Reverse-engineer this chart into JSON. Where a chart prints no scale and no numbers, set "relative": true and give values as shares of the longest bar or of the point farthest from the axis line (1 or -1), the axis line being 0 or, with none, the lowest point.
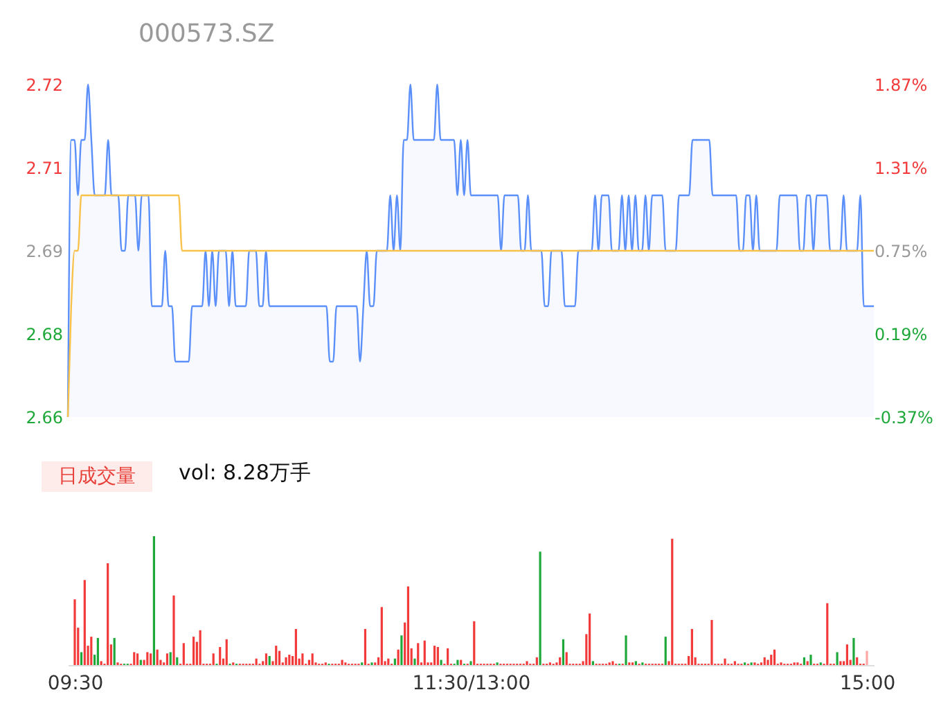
{
  "chart_data": [
    {
      "type": "line",
      "title": "000573.SZ",
      "categories": [
        null,
        null,
        null,
        null,
        null,
        null,
        null,
        null,
        null,
        null,
        null,
        null,
        null,
        null,
        null,
        null,
        null,
        null,
        null,
        null,
        null,
        null,
        null,
        null,
        null,
        null,
        null,
        null,
        null,
        null,
        null,
        null,
        null,
        null,
        null,
        null,
        null,
        null,
        null,
        null,
        null,
        null,
        null,
        null,
        null,
        null,
        null,
        null,
        null,
        null,
        null,
        null,
        null,
        null,
        null,
        null,
        null,
        null,
        null,
        null,
        null,
        null,
        null,
        null,
        null,
        null,
        null,
        null,
        null,
        null,
        null,
        null,
        null,
        null,
        null,
        null,
        null,
        null,
        null,
        null,
        null,
        null,
        null,
        null,
        null,
        null,
        null,
        null,
        null,
        null,
        null,
        null,
        null,
        null,
        null,
        null,
        null,
        null,
        null,
        null,
        null,
        null,
        null,
        null,
        null,
        null,
        null,
        null,
        null,
        null,
        null,
        null,
        null,
        null,
        null,
        null,
        null,
        null,
        null,
        null,
        null,
        null,
        null,
        null,
        null,
        null,
        null,
        null,
        null,
        null,
        null,
        null,
        null,
        null,
        null,
        null,
        null,
        null,
        null,
        null,
        null,
        null,
        null,
        null,
        null,
        null,
        null,
        null,
        null,
        null,
        null,
        null,
        null,
        null,
        null,
        null,
        null,
        null,
        null,
        null,
        null,
        null,
        null,
        null,
        null,
        null,
        null,
        null,
        null,
        null,
        null,
        null,
        null,
        null,
        null,
        null,
        null,
        null,
        null,
        null,
        null,
        null,
        null,
        null,
        null,
        null,
        null,
        null,
        null,
        null,
        null,
        null,
        null,
        null,
        null,
        null,
        null,
        null,
        null,
        null,
        null,
        null,
        null,
        null,
        null,
        null,
        null,
        null,
        null,
        null,
        null,
        null,
        null,
        null,
        null,
        null,
        null,
        null,
        null,
        null,
        null,
        null,
        null,
        null,
        null,
        null,
        null,
        null,
        null,
        null,
        null,
        null,
        null,
        null,
        null,
        null,
        null,
        null,
        null,
        null,
        null
      ],
      "ylim": [
        2.66,
        2.72
      ],
      "yticks": [
        2.66,
        {
          "value": 2.675,
          "label": "2.68"
        },
        2.69,
        {
          "value": 2.705,
          "label": "2.71"
        },
        2.72
      ],
      "y2lim": [
        -0.37,
        1.87
      ],
      "y2ticks": [
        {
          "value": -0.37,
          "label": "-0.37%"
        },
        {
          "value": 0.19,
          "label": "0.19%"
        },
        {
          "value": 0.75,
          "label": "0.75%"
        },
        {
          "value": 1.31,
          "label": "1.31%"
        },
        {
          "value": 1.87,
          "label": "1.87%"
        }
      ],
      "tick_labels": "y",
      "series": [
        {
          "type": "area",
          "color": "#5b8ff9",
          "values": [
            2.66,
            2.71,
            2.71,
            2.7,
            2.71,
            2.71,
            2.72,
            2.71,
            2.7,
            2.7,
            2.7,
            2.7,
            2.71,
            2.7,
            2.7,
            2.7,
            2.69,
            2.69,
            2.7,
            2.7,
            2.7,
            2.69,
            2.7,
            2.7,
            2.7,
            2.68,
            2.68,
            2.68,
            2.68,
            2.69,
            2.68,
            2.68,
            2.67,
            2.67,
            2.67,
            2.67,
            2.67,
            2.68,
            2.68,
            2.68,
            2.68,
            2.69,
            2.68,
            2.69,
            2.68,
            2.69,
            2.69,
            2.69,
            2.68,
            2.69,
            2.68,
            2.68,
            2.68,
            2.68,
            2.69,
            2.69,
            2.69,
            2.68,
            2.68,
            2.69,
            2.68,
            2.68,
            2.68,
            2.68,
            2.68,
            2.68,
            2.68,
            2.68,
            2.68,
            2.68,
            2.68,
            2.68,
            2.68,
            2.68,
            2.68,
            2.68,
            2.68,
            2.68,
            2.67,
            2.67,
            2.68,
            2.68,
            2.68,
            2.68,
            2.68,
            2.68,
            2.68,
            2.67,
            2.68,
            2.69,
            2.68,
            2.68,
            2.69,
            2.69,
            2.69,
            2.69,
            2.7,
            2.69,
            2.7,
            2.69,
            2.71,
            2.71,
            2.72,
            2.71,
            2.71,
            2.71,
            2.71,
            2.71,
            2.71,
            2.71,
            2.72,
            2.71,
            2.71,
            2.71,
            2.71,
            2.71,
            2.7,
            2.71,
            2.7,
            2.71,
            2.7,
            2.7,
            2.7,
            2.7,
            2.7,
            2.7,
            2.7,
            2.7,
            2.7,
            2.69,
            2.7,
            2.7,
            2.7,
            2.7,
            2.7,
            2.69,
            2.69,
            2.7,
            2.69,
            2.69,
            2.69,
            2.69,
            2.68,
            2.68,
            2.69,
            2.69,
            2.69,
            2.69,
            2.68,
            2.68,
            2.68,
            2.68,
            2.69,
            2.69,
            2.69,
            2.69,
            2.69,
            2.7,
            2.69,
            2.7,
            2.7,
            2.7,
            2.69,
            2.69,
            2.69,
            2.7,
            2.69,
            2.7,
            2.69,
            2.7,
            2.69,
            2.69,
            2.7,
            2.69,
            2.7,
            2.7,
            2.7,
            2.7,
            2.69,
            2.69,
            2.69,
            2.69,
            2.7,
            2.7,
            2.7,
            2.7,
            2.71,
            2.71,
            2.71,
            2.71,
            2.71,
            2.71,
            2.7,
            2.7,
            2.7,
            2.7,
            2.7,
            2.7,
            2.7,
            2.7,
            2.69,
            2.69,
            2.7,
            2.7,
            2.69,
            2.7,
            2.69,
            2.69,
            2.69,
            2.69,
            2.69,
            2.69,
            2.7,
            2.7,
            2.7,
            2.7,
            2.7,
            2.7,
            2.69,
            2.69,
            2.7,
            2.7,
            2.69,
            2.7,
            2.7,
            2.7,
            2.7,
            2.69,
            2.69,
            2.69,
            2.69,
            2.7,
            2.69,
            2.69,
            2.69,
            2.69,
            2.7,
            2.68,
            2.68,
            2.68,
            2.68
          ]
        },
        {
          "type": "line",
          "color": "#f8c24a",
          "values": [
            2.66,
            2.68,
            2.69,
            2.69,
            2.7,
            2.7,
            2.7,
            2.7,
            2.7,
            2.7,
            2.7,
            2.7,
            2.7,
            2.7,
            2.7,
            2.7,
            2.7,
            2.7,
            2.7,
            2.7,
            2.7,
            2.7,
            2.7,
            2.7,
            2.7,
            2.7,
            2.7,
            2.7,
            2.7,
            2.7,
            2.7,
            2.7,
            2.7,
            2.7,
            2.69,
            2.69,
            2.69,
            2.69,
            2.69,
            2.69,
            2.69,
            2.69,
            2.69,
            2.69,
            2.69,
            2.69,
            2.69,
            2.69,
            2.69,
            2.69,
            2.69,
            2.69,
            2.69,
            2.69,
            2.69,
            2.69,
            2.69,
            2.69,
            2.69,
            2.69,
            2.69,
            2.69,
            2.69,
            2.69,
            2.69,
            2.69,
            2.69,
            2.69,
            2.69,
            2.69,
            2.69,
            2.69,
            2.69,
            2.69,
            2.69,
            2.69,
            2.69,
            2.69,
            2.69,
            2.69,
            2.69,
            2.69,
            2.69,
            2.69,
            2.69,
            2.69,
            2.69,
            2.69,
            2.69,
            2.69,
            2.69,
            2.69,
            2.69,
            2.69,
            2.69,
            2.69,
            2.69,
            2.69,
            2.69,
            2.69,
            2.69,
            2.69,
            2.69,
            2.69,
            2.69,
            2.69,
            2.69,
            2.69,
            2.69,
            2.69,
            2.69,
            2.69,
            2.69,
            2.69,
            2.69,
            2.69,
            2.69,
            2.69,
            2.69,
            2.69,
            2.69,
            2.69,
            2.69,
            2.69,
            2.69,
            2.69,
            2.69,
            2.69,
            2.69,
            2.69,
            2.69,
            2.69,
            2.69,
            2.69,
            2.69,
            2.69,
            2.69,
            2.69,
            2.69,
            2.69,
            2.69,
            2.69,
            2.69,
            2.69,
            2.69,
            2.69,
            2.69,
            2.69,
            2.69,
            2.69,
            2.69,
            2.69,
            2.69,
            2.69,
            2.69,
            2.69,
            2.69,
            2.69,
            2.69,
            2.69,
            2.69,
            2.69,
            2.69,
            2.69,
            2.69,
            2.69,
            2.69,
            2.69,
            2.69,
            2.69,
            2.69,
            2.69,
            2.69,
            2.69,
            2.69,
            2.69,
            2.69,
            2.69,
            2.69,
            2.69,
            2.69,
            2.69,
            2.69,
            2.69,
            2.69,
            2.69,
            2.69,
            2.69,
            2.69,
            2.69,
            2.69,
            2.69,
            2.69,
            2.69,
            2.69,
            2.69,
            2.69,
            2.69,
            2.69,
            2.69,
            2.69,
            2.69,
            2.69,
            2.69,
            2.69,
            2.69,
            2.69,
            2.69,
            2.69,
            2.69,
            2.69,
            2.69,
            2.69,
            2.69,
            2.69,
            2.69,
            2.69,
            2.69,
            2.69,
            2.69,
            2.69,
            2.69,
            2.69,
            2.69,
            2.69,
            2.69,
            2.69,
            2.69,
            2.69,
            2.69,
            2.69,
            2.69,
            2.69,
            2.69,
            2.69,
            2.69,
            2.69,
            2.69,
            2.69,
            2.69,
            2.69
          ]
        }
      ]
    },
    {
      "type": "bar",
      "relative": true,
      "annotations": [
        "日成交量",
        "vol: 8.28万手"
      ],
      "categories": [
        "09:30",
        null,
        null,
        null,
        null,
        null,
        null,
        null,
        null,
        null,
        null,
        null,
        null,
        null,
        null,
        null,
        null,
        null,
        null,
        null,
        null,
        null,
        null,
        null,
        null,
        null,
        null,
        null,
        null,
        null,
        null,
        null,
        null,
        null,
        null,
        null,
        null,
        null,
        null,
        null,
        null,
        null,
        null,
        null,
        null,
        null,
        null,
        null,
        null,
        null,
        null,
        null,
        null,
        null,
        null,
        null,
        null,
        null,
        null,
        null,
        null,
        null,
        null,
        null,
        null,
        null,
        null,
        null,
        null,
        null,
        null,
        null,
        null,
        null,
        null,
        null,
        null,
        null,
        null,
        null,
        null,
        null,
        null,
        null,
        null,
        null,
        null,
        null,
        null,
        null,
        null,
        null,
        null,
        null,
        null,
        null,
        null,
        null,
        null,
        null,
        null,
        null,
        null,
        null,
        null,
        null,
        null,
        null,
        null,
        null,
        null,
        null,
        null,
        null,
        null,
        null,
        null,
        null,
        null,
        null,
        "11:30/13:00",
        null,
        null,
        null,
        null,
        null,
        null,
        null,
        null,
        null,
        null,
        null,
        null,
        null,
        null,
        null,
        null,
        null,
        null,
        null,
        null,
        null,
        null,
        null,
        null,
        null,
        null,
        null,
        null,
        null,
        null,
        null,
        null,
        null,
        null,
        null,
        null,
        null,
        null,
        null,
        null,
        null,
        null,
        null,
        null,
        null,
        null,
        null,
        null,
        null,
        null,
        null,
        null,
        null,
        null,
        null,
        null,
        null,
        null,
        null,
        null,
        null,
        null,
        null,
        null,
        null,
        null,
        null,
        null,
        null,
        null,
        null,
        null,
        null,
        null,
        null,
        null,
        null,
        null,
        null,
        null,
        null,
        null,
        null,
        null,
        null,
        null,
        null,
        null,
        null,
        null,
        null,
        null,
        null,
        null,
        null,
        null,
        null,
        null,
        null,
        null,
        null,
        null,
        null,
        null,
        null,
        null,
        null,
        null,
        null,
        null,
        null,
        null,
        null,
        null,
        null,
        null,
        null,
        null,
        null,
        "15:00"
      ],
      "values": [
        0.51,
        0.29,
        0.1,
        0.66,
        0.15,
        0.22,
        0.08,
        0.21,
        0.03,
        0.01,
        0.79,
        0.16,
        0.21,
        0.02,
        0.01,
        0.01,
        0.01,
        0.01,
        0.1,
        0.09,
        0.04,
        0.04,
        0.1,
        0.09,
        1,
        0.12,
        0.04,
        0.02,
        0.09,
        0.1,
        0.54,
        0.06,
        0.01,
        0.17,
        0.01,
        0.01,
        0.22,
        0.18,
        0.27,
        0.01,
        0.01,
        0.01,
        0.09,
        0.01,
        0.14,
        0.05,
        0.2,
        0.01,
        0.02,
        0.01,
        0.01,
        0.01,
        0.01,
        0.01,
        0.01,
        0.05,
        0.01,
        0.03,
        0.09,
        0.07,
        0.03,
        0.15,
        0.11,
        0.02,
        0.06,
        0.08,
        0.07,
        0.28,
        0.05,
        0.09,
        0.01,
        0.04,
        0.09,
        0.02,
        0.01,
        0.01,
        0.02,
        0.01,
        0.01,
        0.01,
        0.01,
        0.04,
        0.02,
        0.01,
        0.01,
        0.01,
        0.01,
        0.02,
        0.28,
        0.01,
        0.02,
        0.02,
        0.06,
        0.45,
        0.03,
        0.05,
        0.01,
        0.05,
        0.12,
        0.23,
        0.33,
        0.61,
        0.13,
        0.05,
        0.17,
        0.02,
        0.19,
        0.02,
        0.02,
        0.15,
        0.14,
        0.04,
        0.01,
        0.13,
        0.01,
        0.01,
        0.04,
        0.04,
        0.01,
        0.01,
        0.03,
        0.34,
        0.01,
        0.01,
        0.01,
        0.01,
        0.01,
        0.01,
        0.02,
        0.01,
        0.01,
        0.01,
        0.01,
        0.01,
        0.01,
        0.01,
        0.01,
        0.03,
        0.01,
        0.01,
        0.06,
        0.88,
        0.01,
        0.01,
        0.02,
        0.01,
        0.02,
        0.06,
        0.2,
        0.1,
        0.01,
        0.01,
        0.01,
        0.01,
        0.03,
        0.24,
        0.4,
        0.03,
        0.01,
        0.01,
        0.01,
        0.01,
        0.02,
        0.03,
        0.01,
        0.01,
        0.01,
        0.23,
        0.02,
        0.02,
        0.03,
        0.01,
        0.02,
        0.01,
        0.01,
        0.01,
        0.01,
        0.01,
        0.01,
        0.22,
        0.03,
        0.98,
        0.01,
        0.01,
        0.01,
        0.01,
        0.07,
        0.28,
        0.06,
        0.01,
        0.01,
        0.01,
        0.01,
        0.35,
        0.01,
        0.01,
        0.01,
        0.05,
        0.01,
        0.01,
        0.03,
        0.01,
        0.01,
        0.02,
        0.01,
        0.02,
        0.02,
        0.01,
        0.02,
        0.06,
        0.04,
        0.08,
        0.12,
        0.01,
        0.02,
        0.01,
        0.01,
        0.01,
        0.02,
        0.02,
        0.01,
        0.06,
        0.03,
        0.08,
        0.01,
        0.01,
        0.02,
        0.01,
        0.48,
        0.01,
        0.01,
        0.1,
        0.03,
        0.03,
        0.16,
        0.04,
        0.21,
        0.06,
        0.01,
        0.01,
        0.11
      ],
      "colors": [
        "#f23a3a",
        "#f23a3a",
        "#1fa83a",
        "#f23a3a",
        "#f23a3a",
        "#f23a3a",
        "#1fa83a",
        "#1fa83a",
        "#f23a3a",
        "#f23a3a",
        "#f23a3a",
        "#f23a3a",
        "#1fa83a",
        "#f23a3a",
        "#f23a3a",
        "#1fa83a",
        "#1fa83a",
        "#f23a3a",
        "#f23a3a",
        "#f23a3a",
        "#1fa83a",
        "#f23a3a",
        "#f23a3a",
        "#f23a3a",
        "#1fa83a",
        "#f23a3a",
        "#f23a3a",
        "#f23a3a",
        "#f23a3a",
        "#1fa83a",
        "#f23a3a",
        "#1fa83a",
        "#f23a3a",
        "#f23a3a",
        "#f23a3a",
        "#f23a3a",
        "#f23a3a",
        "#f23a3a",
        "#f23a3a",
        "#f23a3a",
        "#f23a3a",
        "#f23a3a",
        "#f23a3a",
        "#1fa83a",
        "#f23a3a",
        "#f23a3a",
        "#f23a3a",
        "#1fa83a",
        "#f23a3a",
        "#1fa83a",
        "#f23a3a",
        "#f23a3a",
        "#f23a3a",
        "#f23a3a",
        "#f23a3a",
        "#f23a3a",
        "#f23a3a",
        "#f23a3a",
        "#f23a3a",
        "#1fa83a",
        "#f23a3a",
        "#f23a3a",
        "#f23a3a",
        "#f23a3a",
        "#f23a3a",
        "#f23a3a",
        "#f23a3a",
        "#f23a3a",
        "#f23a3a",
        "#f23a3a",
        "#f23a3a",
        "#f23a3a",
        "#f23a3a",
        "#f23a3a",
        "#f23a3a",
        "#f23a3a",
        "#f23a3a",
        "#1fa83a",
        "#f23a3a",
        "#f23a3a",
        "#f23a3a",
        "#f23a3a",
        "#f23a3a",
        "#f23a3a",
        "#f23a3a",
        "#f23a3a",
        "#f23a3a",
        "#1fa83a",
        "#f23a3a",
        "#f23a3a",
        "#1fa83a",
        "#f23a3a",
        "#f23a3a",
        "#f23a3a",
        "#f23a3a",
        "#f23a3a",
        "#f23a3a",
        "#1fa83a",
        "#f23a3a",
        "#1fa83a",
        "#f23a3a",
        "#f23a3a",
        "#f23a3a",
        "#1fa83a",
        "#f23a3a",
        "#f23a3a",
        "#f23a3a",
        "#f23a3a",
        "#f23a3a",
        "#f23a3a",
        "#f23a3a",
        "#1fa83a",
        "#f23a3a",
        "#f23a3a",
        "#f23a3a",
        "#1fa83a",
        "#1fa83a",
        "#f23a3a",
        "#1fa83a",
        "#f23a3a",
        "#1fa83a",
        "#f23a3a",
        "#f23a3a",
        "#f23a3a",
        "#f23a3a",
        "#f23a3a",
        "#f23a3a",
        "#f23a3a",
        "#1fa83a",
        "#f23a3a",
        "#f23a3a",
        "#f23a3a",
        "#f23a3a",
        "#f23a3a",
        "#f23a3a",
        "#f23a3a",
        "#f23a3a",
        "#f23a3a",
        "#f23a3a",
        "#f23a3a",
        "#f23a3a",
        "#1fa83a",
        "#f23a3a",
        "#f23a3a",
        "#f23a3a",
        "#f23a3a",
        "#f23a3a",
        "#f23a3a",
        "#1fa83a",
        "#f23a3a",
        "#f23a3a",
        "#f23a3a",
        "#f23a3a",
        "#f23a3a",
        "#f23a3a",
        "#f23a3a",
        "#f23a3a",
        "#1fa83a",
        "#f23a3a",
        "#f23a3a",
        "#f23a3a",
        "#f23a3a",
        "#f23a3a",
        "#f23a3a",
        "#f23a3a",
        "#1fa83a",
        "#f23a3a",
        "#1fa83a",
        "#f23a3a",
        "#f23a3a",
        "#1fa83a",
        "#f23a3a",
        "#1fa83a",
        "#f23a3a",
        "#f23a3a",
        "#f23a3a",
        "#f23a3a",
        "#f23a3a",
        "#f23a3a",
        "#1fa83a",
        "#f23a3a",
        "#f23a3a",
        "#f23a3a",
        "#f23a3a",
        "#f23a3a",
        "#f23a3a",
        "#f23a3a",
        "#f23a3a",
        "#f23a3a",
        "#f23a3a",
        "#f23a3a",
        "#f23a3a",
        "#f23a3a",
        "#f23a3a",
        "#f23a3a",
        "#f23a3a",
        "#f23a3a",
        "#f23a3a",
        "#f23a3a",
        "#f23a3a",
        "#f23a3a",
        "#f23a3a",
        "#f23a3a",
        "#1fa83a",
        "#f23a3a",
        "#1fa83a",
        "#f23a3a",
        "#f23a3a",
        "#f23a3a",
        "#f23a3a",
        "#f23a3a",
        "#f23a3a",
        "#f23a3a",
        "#f23a3a",
        "#f23a3a",
        "#f23a3a",
        "#f23a3a",
        "#f23a3a",
        "#f23a3a",
        "#f23a3a",
        "#f23a3a",
        "#1fa83a",
        "#f23a3a",
        "#1fa83a",
        "#f23a3a",
        "#f23a3a",
        "#1fa83a",
        "#f23a3a",
        "#f23a3a",
        "#f23a3a",
        "#f23a3a",
        "#1fa83a",
        "#f23a3a",
        "#f23a3a",
        "#f23a3a",
        "#f23a3a",
        "#1fa83a",
        "#f23a3a",
        "#f23a3a",
        "#f23a3a",
        "#ffa6a6"
      ]
    }
  ]
}
